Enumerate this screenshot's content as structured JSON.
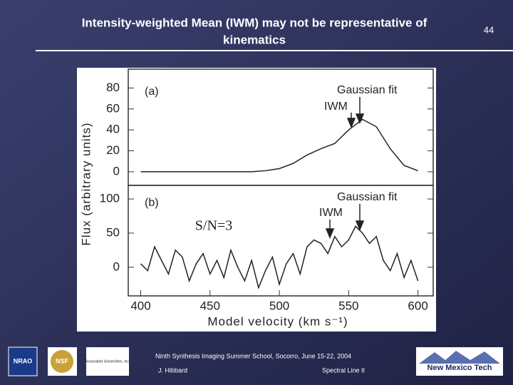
{
  "slide": {
    "title_lines": [
      "Intensity-weighted Mean (IWM) may not be representative of",
      "kinematics"
    ],
    "page_number": "44",
    "footer": {
      "event": "Ninth Synthesis Imaging Summer School, Socorro, June 15-22, 2004",
      "author": "J. Hibbard",
      "topic": "Spectral Line II"
    },
    "logos": [
      "NRAO",
      "NSF",
      "Associated Universities, Inc.",
      "New Mexico Tech"
    ]
  },
  "chart_data": [
    {
      "type": "line",
      "y_label": "Flux (arbitrary units)",
      "annotations": [
        "(a)",
        "Gaussian fit",
        "IWM"
      ],
      "x": [
        400,
        410,
        420,
        430,
        440,
        450,
        460,
        470,
        480,
        490,
        500,
        510,
        520,
        530,
        540,
        550,
        560,
        570,
        580,
        590,
        600
      ],
      "series": [
        {
          "name": "panel a",
          "color": "#222222",
          "values": [
            0,
            0,
            0,
            0,
            0,
            0,
            0,
            0,
            0,
            1,
            3,
            8,
            16,
            22,
            27,
            40,
            50,
            43,
            22,
            6,
            1
          ]
        }
      ],
      "xlim": [
        391,
        611
      ],
      "ylim": [
        -13,
        98
      ],
      "yticks": [
        0,
        20,
        40,
        60,
        80
      ]
    },
    {
      "type": "line",
      "x_label": "Model velocity (km s⁻¹)",
      "annotations": [
        "(b)",
        "Gaussian fit",
        "IWM",
        "S/N=3"
      ],
      "x": [
        400,
        405,
        410,
        415,
        420,
        425,
        430,
        435,
        440,
        445,
        450,
        455,
        460,
        465,
        470,
        475,
        480,
        485,
        490,
        495,
        500,
        505,
        510,
        515,
        520,
        525,
        530,
        535,
        540,
        545,
        550,
        555,
        560,
        565,
        570,
        575,
        580,
        585,
        590,
        595,
        600
      ],
      "series": [
        {
          "name": "panel b",
          "color": "#222222",
          "values": [
            5,
            -5,
            30,
            10,
            -10,
            25,
            15,
            -20,
            5,
            20,
            -10,
            10,
            -15,
            25,
            0,
            -20,
            10,
            -30,
            -5,
            15,
            -25,
            5,
            20,
            -10,
            30,
            40,
            35,
            20,
            45,
            30,
            40,
            60,
            50,
            35,
            45,
            10,
            -5,
            20,
            -15,
            10,
            -20
          ]
        }
      ],
      "xlim": [
        391,
        611
      ],
      "ylim": [
        -42,
        120
      ],
      "yticks": [
        0,
        50,
        100
      ],
      "xticks": [
        400,
        450,
        500,
        550,
        600
      ]
    }
  ]
}
